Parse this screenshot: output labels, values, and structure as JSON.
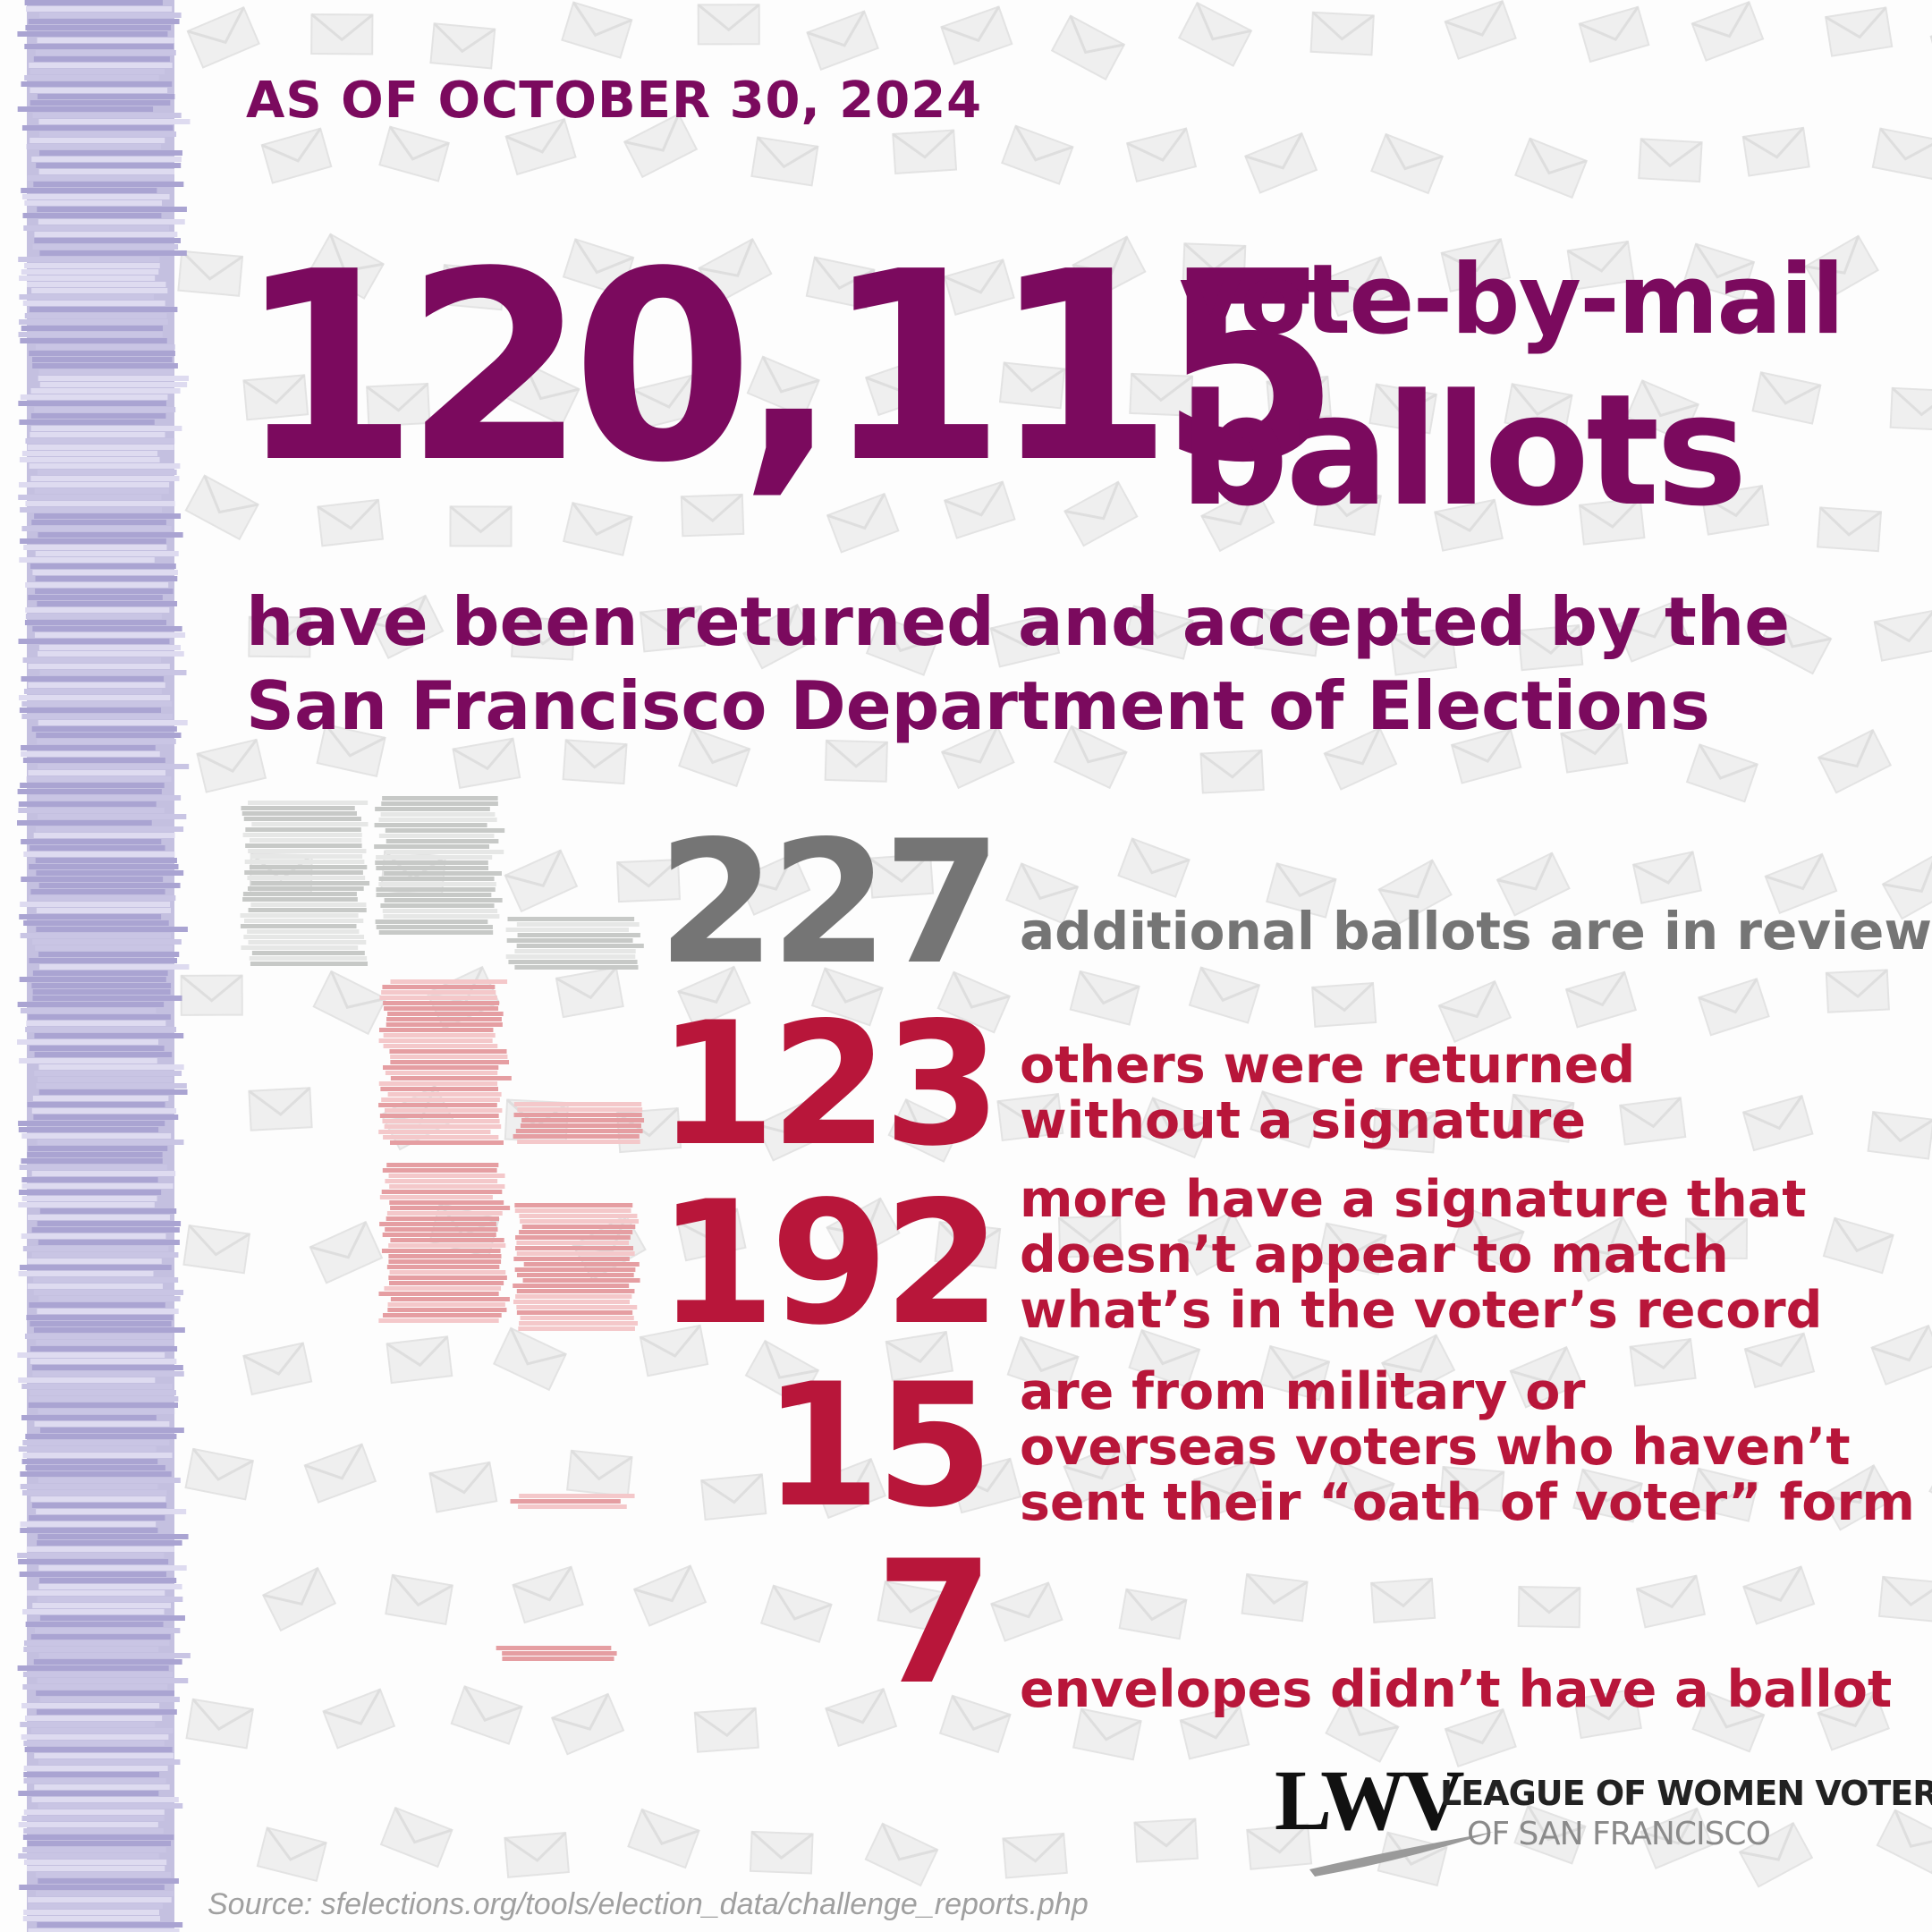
{
  "date_label": "AS OF OCTOBER 30, 2024",
  "headline": {
    "number": "120,115",
    "line1": "vote-by-mail",
    "line2": "ballots"
  },
  "subheadline": {
    "line1": "have been returned and accepted by the",
    "line2": "San Francisco Department of Elections"
  },
  "stats": [
    {
      "number": "227",
      "lines": [
        "additional ballots are in review"
      ],
      "value": 227,
      "color": "#757575"
    },
    {
      "number": "123",
      "lines": [
        "others were returned",
        "without a signature"
      ],
      "value": 123,
      "color": "#b8163a"
    },
    {
      "number": "192",
      "lines": [
        "more have a signature that",
        "doesn’t appear to match",
        "what’s in the voter’s record"
      ],
      "value": 192,
      "color": "#b8163a"
    },
    {
      "number": "15",
      "lines": [
        "are from military or",
        "overseas voters who haven’t",
        "sent their “oath of voter” form"
      ],
      "value": 15,
      "color": "#b8163a"
    },
    {
      "number": "7",
      "lines": [
        "envelopes didn’t have a ballot"
      ],
      "value": 7,
      "color": "#b8163a"
    }
  ],
  "logo": {
    "mark": "LWV",
    "line1": "LEAGUE OF WOMEN VOTERS",
    "registered": "®",
    "line2": "OF SAN FRANCISCO"
  },
  "source": "Source: sfelections.org/tools/election_data/challenge_reports.php",
  "colors": {
    "primary": "#7b0a5e",
    "gray": "#757575",
    "red": "#b8163a",
    "stack_lavender": "#bcb7dd",
    "stack_gray": "#d4d6d4",
    "stack_pink": "#eba9ac"
  }
}
